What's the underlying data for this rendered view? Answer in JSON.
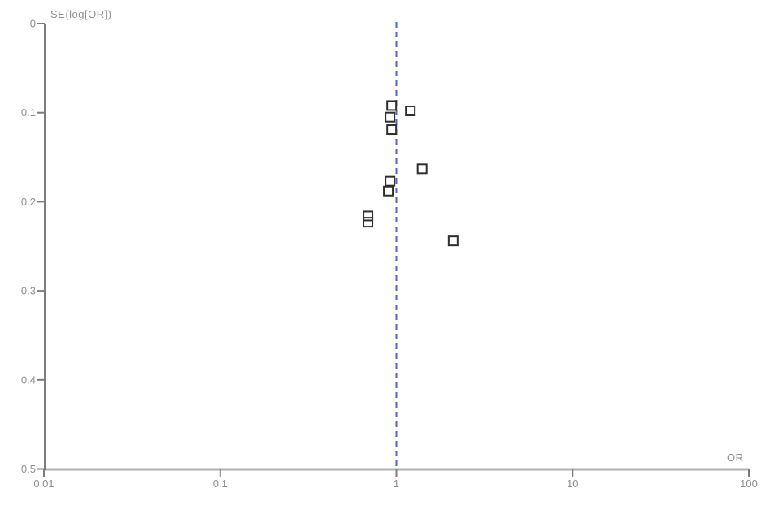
{
  "chart_data": {
    "type": "scatter",
    "title": "",
    "xlabel": "OR",
    "ylabel": "SE(log[OR])",
    "x_scale": "log",
    "x_range": [
      0.01,
      100
    ],
    "y_range": [
      0,
      0.5
    ],
    "y_axis_inverted": true,
    "grid": false,
    "legend": false,
    "x_tick_values": [
      0.01,
      0.1,
      1,
      10,
      100
    ],
    "x_tick_labels": [
      "0.01",
      "0.1",
      "1",
      "10",
      "100"
    ],
    "y_tick_values": [
      0,
      0.1,
      0.2,
      0.3,
      0.4,
      0.5
    ],
    "y_tick_labels": [
      "0",
      "0.1",
      "0.2",
      "0.3",
      "0.4",
      "0.5"
    ],
    "reference_line": {
      "axis": "x",
      "value": 1.0,
      "style": "dashed"
    },
    "marker": "open-square",
    "points": [
      {
        "or": 0.94,
        "se": 0.092
      },
      {
        "or": 1.2,
        "se": 0.098
      },
      {
        "or": 0.92,
        "se": 0.105
      },
      {
        "or": 0.94,
        "se": 0.119
      },
      {
        "or": 1.4,
        "se": 0.163
      },
      {
        "or": 0.92,
        "se": 0.177
      },
      {
        "or": 0.9,
        "se": 0.188
      },
      {
        "or": 0.69,
        "se": 0.216
      },
      {
        "or": 0.69,
        "se": 0.223
      },
      {
        "or": 2.1,
        "se": 0.244
      }
    ]
  },
  "style": {
    "background": "#ffffff",
    "y_axis_color": "#7d7d7d",
    "x_axis_color": "#b2b2b2",
    "tick_color": "#7d7d7d",
    "tick_label_color": "#8f8f8f",
    "marker_color": "#2e2e2e",
    "reference_line_color": "#5565b8"
  }
}
